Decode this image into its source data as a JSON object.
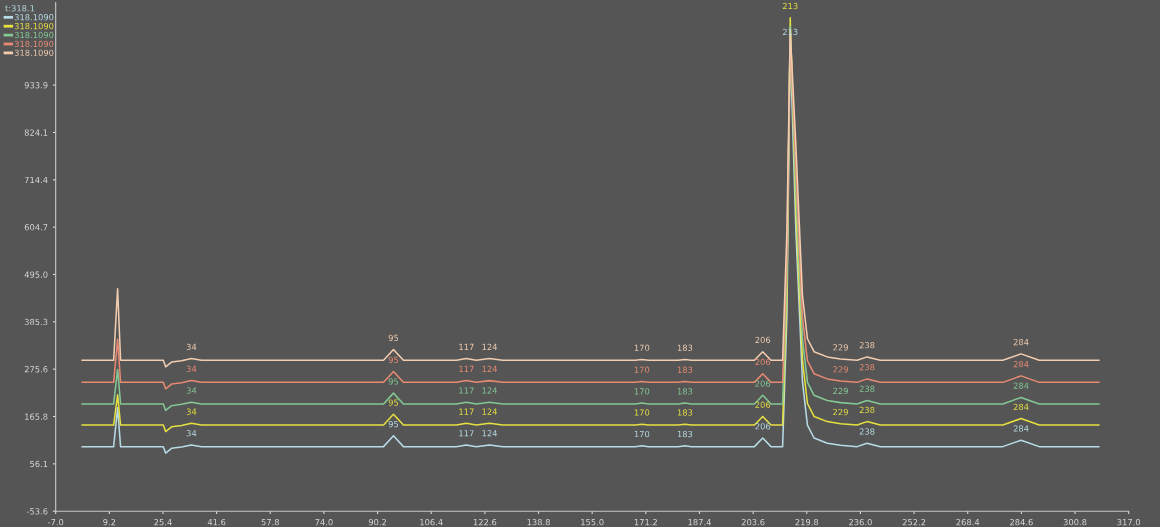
{
  "chart_data": {
    "type": "line",
    "legend_title": "t:318.1",
    "legend": "top left",
    "grid": false,
    "x": [
      1,
      10.5,
      11.7,
      12.6,
      25.5,
      26.2,
      28,
      31,
      34,
      37,
      60,
      92,
      95,
      98,
      114,
      117,
      120,
      124,
      128,
      168,
      170,
      172,
      181,
      183,
      185,
      204,
      206.5,
      209,
      212.5,
      213.8,
      214.8,
      216.5,
      218.5,
      220,
      222,
      226,
      230,
      235,
      238,
      242,
      279,
      284.5,
      290,
      308
    ],
    "series": [
      {
        "name": "318.1090",
        "color": "#b8dce6",
        "values": [
          96,
          96,
          186,
          96,
          96,
          81,
          92,
          95,
          100,
          96,
          96,
          96,
          121,
          96,
          96,
          100,
          96,
          100,
          96,
          96,
          98,
          96,
          96,
          98,
          96,
          96,
          116,
          96,
          96,
          396,
          1030,
          596,
          246,
          146,
          116,
          104,
          99,
          96,
          104,
          96,
          96,
          111,
          96,
          96
        ]
      },
      {
        "name": "318.1090",
        "color": "#e6e040",
        "values": [
          146,
          146,
          216,
          146,
          146,
          131,
          142,
          145,
          150,
          146,
          146,
          146,
          171,
          146,
          146,
          150,
          146,
          150,
          146,
          146,
          148,
          146,
          146,
          148,
          146,
          146,
          166,
          146,
          146,
          446,
          1090,
          646,
          296,
          196,
          166,
          154,
          149,
          146,
          154,
          146,
          146,
          161,
          146,
          146
        ]
      },
      {
        "name": "318.1090",
        "color": "#84c894",
        "values": [
          195,
          195,
          275,
          195,
          195,
          180,
          191,
          194,
          199,
          195,
          195,
          195,
          220,
          195,
          195,
          199,
          195,
          199,
          195,
          195,
          197,
          195,
          195,
          197,
          195,
          195,
          215,
          195,
          195,
          495,
          1070,
          695,
          345,
          245,
          215,
          203,
          198,
          195,
          203,
          195,
          195,
          210,
          195,
          195
        ]
      },
      {
        "name": "318.1090",
        "color": "#e88a72",
        "values": [
          245,
          245,
          345,
          245,
          245,
          230,
          241,
          244,
          249,
          245,
          245,
          245,
          270,
          245,
          245,
          249,
          245,
          249,
          245,
          245,
          247,
          245,
          245,
          247,
          245,
          245,
          265,
          245,
          245,
          545,
          1050,
          745,
          395,
          295,
          265,
          253,
          248,
          245,
          253,
          245,
          245,
          260,
          245,
          245
        ]
      },
      {
        "name": "318.1090",
        "color": "#f2cdb0",
        "values": [
          296,
          296,
          462,
          296,
          296,
          281,
          292,
          295,
          300,
          296,
          296,
          296,
          321,
          296,
          296,
          300,
          296,
          300,
          296,
          296,
          298,
          296,
          296,
          298,
          296,
          296,
          316,
          296,
          296,
          596,
          1060,
          796,
          446,
          346,
          316,
          304,
          299,
          296,
          304,
          296,
          296,
          311,
          296,
          296
        ]
      }
    ],
    "xlim": [
      -7,
      317
    ],
    "xticks": [
      {
        "value": -7,
        "label": "-7.0"
      },
      9.2,
      25.4,
      41.6,
      57.8,
      {
        "value": 74,
        "label": "74.0"
      },
      90.2,
      106.4,
      122.6,
      138.8,
      {
        "value": 155,
        "label": "155.0"
      },
      171.2,
      187.4,
      203.6,
      219.8,
      {
        "value": 236,
        "label": "236.0"
      },
      252.2,
      268.4,
      284.6,
      300.8,
      {
        "value": 317,
        "label": "317.0"
      }
    ],
    "ylim": [
      -53.6,
      1125
    ],
    "yticks": [
      -53.6,
      56.1,
      165.8,
      275.6,
      385.3,
      {
        "value": 495,
        "label": "495.0"
      },
      604.7,
      714.4,
      824.1,
      933.9
    ],
    "annotations": [
      {
        "text": "34",
        "x": 34,
        "y": 100
      },
      {
        "text": "95",
        "x": 95,
        "y": 121
      },
      {
        "text": "117",
        "x": 117,
        "y": 100
      },
      {
        "text": "124",
        "x": 124,
        "y": 100
      },
      {
        "text": "170",
        "x": 170,
        "y": 98
      },
      {
        "text": "183",
        "x": 183,
        "y": 98
      },
      {
        "text": "206",
        "x": 206.5,
        "y": 116
      },
      {
        "text": "238",
        "x": 238,
        "y": 104
      },
      {
        "text": "284",
        "x": 284.5,
        "y": 111
      },
      {
        "text": "213",
        "x": 214.8,
        "y": 1030
      },
      {
        "text": "34",
        "x": 34,
        "y": 150
      },
      {
        "text": "95",
        "x": 95,
        "y": 171
      },
      {
        "text": "117",
        "x": 117,
        "y": 150
      },
      {
        "text": "124",
        "x": 124,
        "y": 150
      },
      {
        "text": "170",
        "x": 170,
        "y": 148
      },
      {
        "text": "183",
        "x": 183,
        "y": 148
      },
      {
        "text": "206",
        "x": 206.5,
        "y": 166
      },
      {
        "text": "229",
        "x": 230,
        "y": 149
      },
      {
        "text": "238",
        "x": 238,
        "y": 154
      },
      {
        "text": "284",
        "x": 284.5,
        "y": 161
      },
      {
        "text": "213",
        "x": 214.8,
        "y": 1090
      },
      {
        "text": "34",
        "x": 34,
        "y": 199
      },
      {
        "text": "95",
        "x": 95,
        "y": 220
      },
      {
        "text": "117",
        "x": 117,
        "y": 199
      },
      {
        "text": "124",
        "x": 124,
        "y": 199
      },
      {
        "text": "170",
        "x": 170,
        "y": 197
      },
      {
        "text": "183",
        "x": 183,
        "y": 197
      },
      {
        "text": "206",
        "x": 206.5,
        "y": 215
      },
      {
        "text": "229",
        "x": 230,
        "y": 198
      },
      {
        "text": "238",
        "x": 238,
        "y": 203
      },
      {
        "text": "284",
        "x": 284.5,
        "y": 210
      },
      {
        "text": "34",
        "x": 34,
        "y": 249
      },
      {
        "text": "95",
        "x": 95,
        "y": 270
      },
      {
        "text": "117",
        "x": 117,
        "y": 249
      },
      {
        "text": "124",
        "x": 124,
        "y": 249
      },
      {
        "text": "170",
        "x": 170,
        "y": 247
      },
      {
        "text": "183",
        "x": 183,
        "y": 247
      },
      {
        "text": "206",
        "x": 206.5,
        "y": 265
      },
      {
        "text": "229",
        "x": 230,
        "y": 248
      },
      {
        "text": "238",
        "x": 238,
        "y": 253
      },
      {
        "text": "284",
        "x": 284.5,
        "y": 260
      },
      {
        "text": "34",
        "x": 34,
        "y": 300
      },
      {
        "text": "95",
        "x": 95,
        "y": 321
      },
      {
        "text": "117",
        "x": 117,
        "y": 300
      },
      {
        "text": "124",
        "x": 124,
        "y": 300
      },
      {
        "text": "170",
        "x": 170,
        "y": 298
      },
      {
        "text": "183",
        "x": 183,
        "y": 298
      },
      {
        "text": "206",
        "x": 206.5,
        "y": 316
      },
      {
        "text": "229",
        "x": 230,
        "y": 299
      },
      {
        "text": "238",
        "x": 238,
        "y": 304
      },
      {
        "text": "284",
        "x": 284.5,
        "y": 311
      }
    ]
  }
}
